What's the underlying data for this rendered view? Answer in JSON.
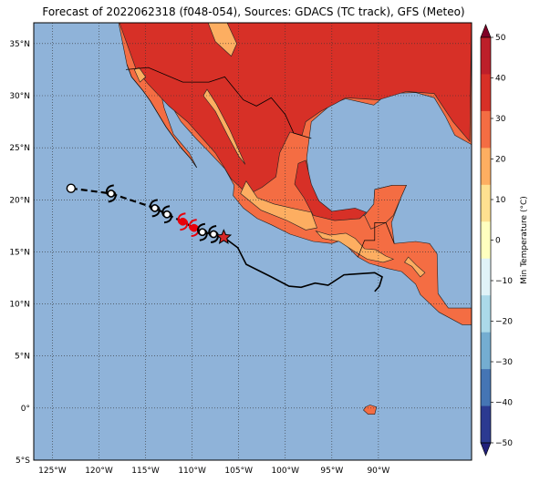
{
  "title": "Forecast of 2022062318 (f048-054), Sources: GDACS (TC track), GFS (Meteo)",
  "map": {
    "lon_range": [
      -127,
      -80
    ],
    "lat_range": [
      -5,
      37
    ],
    "lat_ticks": [
      "35°N",
      "30°N",
      "25°N",
      "20°N",
      "15°N",
      "10°N",
      "5°N",
      "0°",
      "5°S"
    ],
    "lon_ticks": [
      "125°W",
      "120°W",
      "115°W",
      "110°W",
      "105°W",
      "100°W",
      "95°W",
      "90°W"
    ],
    "ocean_color": "#8fb3d9",
    "grid": "dotted"
  },
  "colorbar": {
    "label": "Min Temperature (°C)",
    "ticks": [
      "50",
      "40",
      "30",
      "20",
      "10",
      "0",
      "−10",
      "−20",
      "−30",
      "−40",
      "−50"
    ],
    "colors": [
      "#7f0026",
      "#bd1f2a",
      "#d73027",
      "#f46d43",
      "#fdae61",
      "#fee090",
      "#ffffbf",
      "#e0f3f8",
      "#abd9e9",
      "#74add1",
      "#4575b4",
      "#2b3a91",
      "#21207a"
    ]
  },
  "track": {
    "past": [
      {
        "lon": -123.0,
        "lat": 21.1
      },
      {
        "lon": -118.7,
        "lat": 20.6
      },
      {
        "lon": -114.0,
        "lat": 19.2
      },
      {
        "lon": -112.7,
        "lat": 18.6
      },
      {
        "lon": -111.0,
        "lat": 17.9
      },
      {
        "lon": -109.8,
        "lat": 17.3
      },
      {
        "lon": -108.9,
        "lat": 16.9
      },
      {
        "lon": -107.7,
        "lat": 16.7
      },
      {
        "lon": -106.6,
        "lat": 16.4
      }
    ],
    "cone": [
      {
        "lon": -106.6,
        "lat": 16.4
      },
      {
        "lon": -105.1,
        "lat": 15.4
      },
      {
        "lon": -104.2,
        "lat": 13.8
      },
      {
        "lon": -101.5,
        "lat": 12.6
      },
      {
        "lon": -99.6,
        "lat": 11.7
      },
      {
        "lon": -98.3,
        "lat": 11.6
      },
      {
        "lon": -96.8,
        "lat": 12.0
      },
      {
        "lon": -95.4,
        "lat": 11.8
      },
      {
        "lon": -93.7,
        "lat": 12.8
      },
      {
        "lon": -90.4,
        "lat": 13.0
      },
      {
        "lon": -89.6,
        "lat": 12.6
      },
      {
        "lon": -89.9,
        "lat": 11.7
      },
      {
        "lon": -90.4,
        "lat": 11.2
      }
    ],
    "symbols": [
      {
        "lon": -123.0,
        "lat": 21.1,
        "kind": "circle",
        "color": "#ffffff"
      },
      {
        "lon": -118.7,
        "lat": 20.6,
        "kind": "storm",
        "color": "#000000"
      },
      {
        "lon": -114.0,
        "lat": 19.2,
        "kind": "storm",
        "color": "#000000"
      },
      {
        "lon": -112.7,
        "lat": 18.6,
        "kind": "storm",
        "color": "#000000"
      },
      {
        "lon": -111.0,
        "lat": 17.9,
        "kind": "storm",
        "color": "#e8000b"
      },
      {
        "lon": -109.8,
        "lat": 17.3,
        "kind": "storm",
        "color": "#e8000b"
      },
      {
        "lon": -108.9,
        "lat": 16.9,
        "kind": "storm",
        "color": "#000000"
      },
      {
        "lon": -107.7,
        "lat": 16.7,
        "kind": "storm",
        "color": "#000000"
      },
      {
        "lon": -106.6,
        "lat": 16.4,
        "kind": "star",
        "color": "#d62728"
      }
    ]
  }
}
